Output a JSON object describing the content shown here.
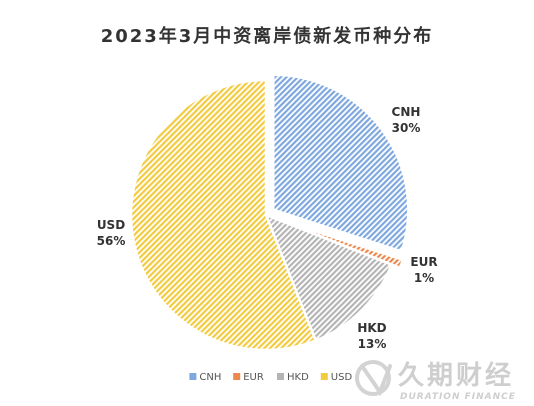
{
  "chart_data": {
    "type": "pie",
    "title": "2023年3月中资离岸债新发币种分布",
    "slices": [
      {
        "label": "CNH",
        "value": 30,
        "value_label": "30%",
        "color": "#7fa8df"
      },
      {
        "label": "EUR",
        "value": 1,
        "value_label": "1%",
        "color": "#ec8a4d"
      },
      {
        "label": "HKD",
        "value": 13,
        "value_label": "13%",
        "color": "#b4b4b4"
      },
      {
        "label": "USD",
        "value": 56,
        "value_label": "56%",
        "color": "#f3cb40"
      }
    ],
    "legend": {
      "placement": "bottom-center",
      "entries": [
        "CNH",
        "EUR",
        "HKD",
        "USD"
      ]
    },
    "exploded_slices": [
      "CNH",
      "EUR"
    ]
  },
  "watermark": {
    "name_cn": "久期财经",
    "name_en": "DURATION FINANCE"
  }
}
